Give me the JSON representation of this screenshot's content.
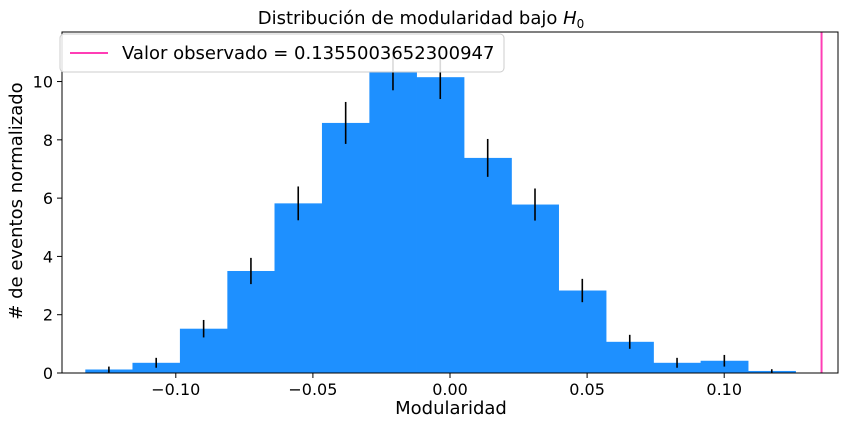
{
  "chart_data": {
    "type": "bar",
    "title_main": "Distribución de modularidad bajo ",
    "title_math": "H",
    "title_sub": "0",
    "xlabel": "Modularidad",
    "ylabel": "# de eventos normalizado",
    "xlim": [
      -0.1415,
      0.1415
    ],
    "ylim": [
      0,
      11.7
    ],
    "xticks": [
      -0.1,
      -0.05,
      0.0,
      0.05,
      0.1
    ],
    "xtick_labels": [
      "−0.10",
      "−0.05",
      "0.00",
      "0.05",
      "0.10"
    ],
    "yticks": [
      0,
      2,
      4,
      6,
      8,
      10
    ],
    "ytick_labels": [
      "0",
      "2",
      "4",
      "6",
      "8",
      "10"
    ],
    "bars": [
      {
        "x0": -0.133,
        "x1": -0.1158,
        "y": 0.12,
        "err": 0.1
      },
      {
        "x0": -0.1158,
        "x1": -0.0985,
        "y": 0.35,
        "err": 0.17
      },
      {
        "x0": -0.0985,
        "x1": -0.0812,
        "y": 1.52,
        "err": 0.3
      },
      {
        "x0": -0.0812,
        "x1": -0.064,
        "y": 3.5,
        "err": 0.45
      },
      {
        "x0": -0.064,
        "x1": -0.0467,
        "y": 5.82,
        "err": 0.58
      },
      {
        "x0": -0.0467,
        "x1": -0.0294,
        "y": 8.58,
        "err": 0.72
      },
      {
        "x0": -0.0294,
        "x1": -0.0122,
        "y": 10.35,
        "err": 0.65
      },
      {
        "x0": -0.0122,
        "x1": 0.0051,
        "y": 10.15,
        "err": 0.75
      },
      {
        "x0": 0.0051,
        "x1": 0.0224,
        "y": 7.38,
        "err": 0.65
      },
      {
        "x0": 0.0224,
        "x1": 0.0396,
        "y": 5.78,
        "err": 0.55
      },
      {
        "x0": 0.0396,
        "x1": 0.0569,
        "y": 2.83,
        "err": 0.4
      },
      {
        "x0": 0.0569,
        "x1": 0.0742,
        "y": 1.07,
        "err": 0.24
      },
      {
        "x0": 0.0742,
        "x1": 0.0914,
        "y": 0.35,
        "err": 0.17
      },
      {
        "x0": 0.0914,
        "x1": 0.1087,
        "y": 0.42,
        "err": 0.2
      },
      {
        "x0": 0.1087,
        "x1": 0.126,
        "y": 0.07,
        "err": 0.06
      }
    ],
    "observed_value": 0.1355003652300947,
    "legend_label": "Valor observado = 0.1355003652300947",
    "legend_position": "upper-left",
    "grid": false,
    "colors": {
      "bar": "#1e90ff",
      "errorbar": "#000000",
      "observed_line": "#ff3eb5",
      "axes": "#000000"
    }
  }
}
